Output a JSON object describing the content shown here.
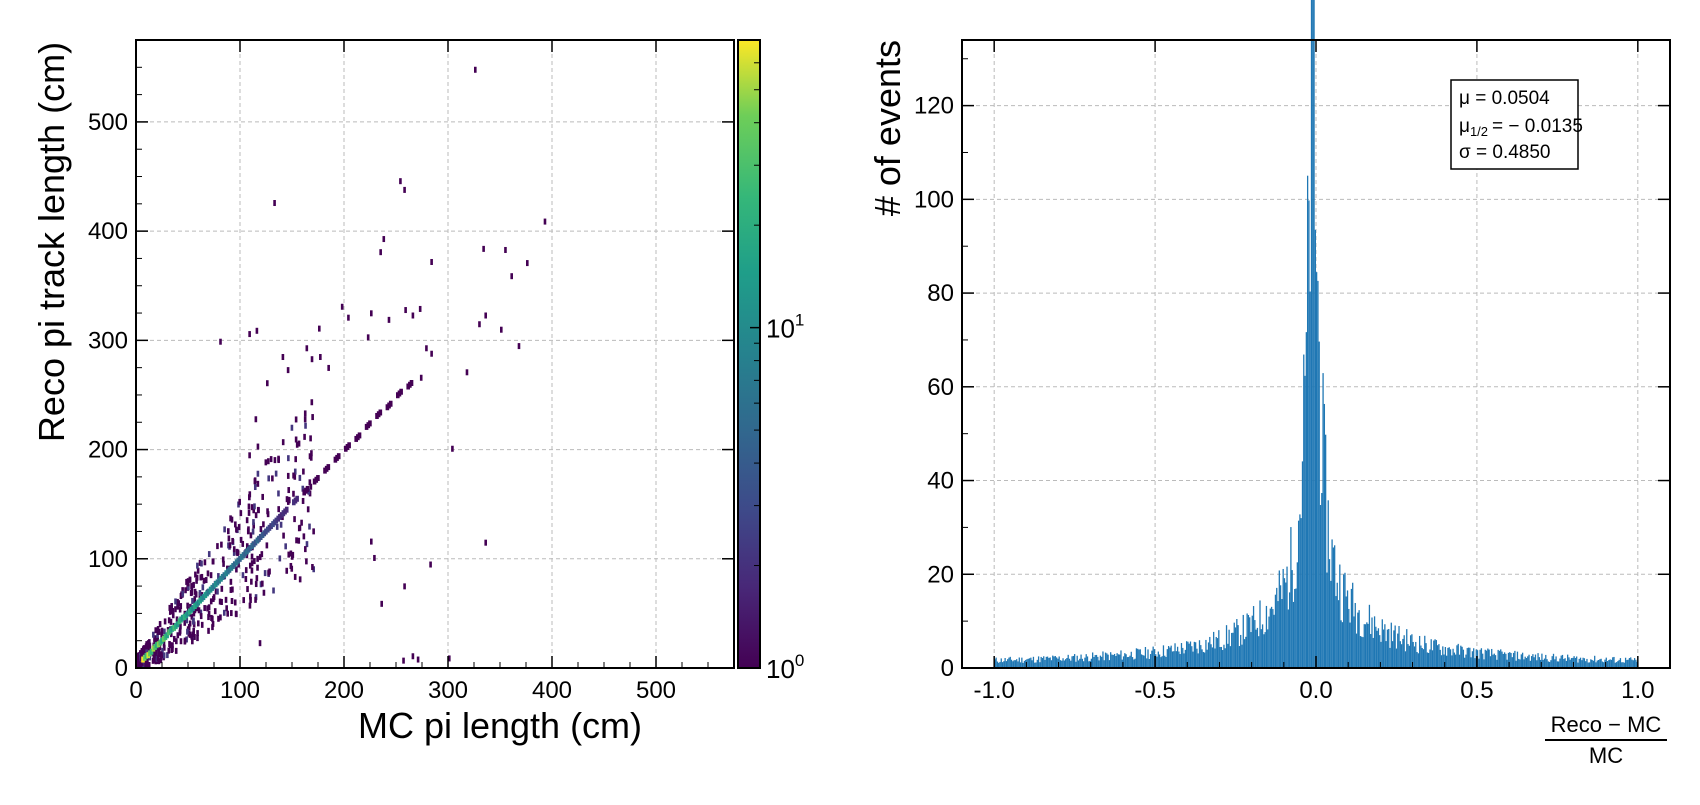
{
  "chart_data": [
    {
      "type": "heatmap",
      "xlabel": "MC pi length (cm)",
      "ylabel": "Reco pi track length (cm)",
      "xlim": [
        0,
        575
      ],
      "ylim": [
        0,
        575
      ],
      "x_ticks": [
        0,
        100,
        200,
        300,
        400,
        500
      ],
      "y_ticks": [
        0,
        100,
        200,
        300,
        400,
        500
      ],
      "grid": true,
      "colorscale": "viridis",
      "color_scale_type": "log",
      "colorbar_range": [
        1,
        70
      ],
      "colorbar_ticks": [
        {
          "value": 1,
          "base": "10",
          "exp": "0"
        },
        {
          "value": 10,
          "base": "10",
          "exp": "1"
        }
      ],
      "points": [
        [
          325,
          545
        ],
        [
          253,
          443
        ],
        [
          257,
          435
        ],
        [
          392,
          406
        ],
        [
          132,
          423
        ],
        [
          237,
          390
        ],
        [
          234,
          378
        ],
        [
          333,
          381
        ],
        [
          354,
          380
        ],
        [
          375,
          368
        ],
        [
          283,
          369
        ],
        [
          360,
          356
        ],
        [
          80,
          296
        ],
        [
          108,
          303
        ],
        [
          115,
          306
        ],
        [
          175,
          308
        ],
        [
          197,
          328
        ],
        [
          203,
          318
        ],
        [
          225,
          322
        ],
        [
          242,
          316
        ],
        [
          258,
          325
        ],
        [
          265,
          320
        ],
        [
          272,
          326
        ],
        [
          222,
          300
        ],
        [
          329,
          312
        ],
        [
          335,
          320
        ],
        [
          350,
          307
        ],
        [
          367,
          292
        ],
        [
          278,
          290
        ],
        [
          283,
          285
        ],
        [
          163,
          290
        ],
        [
          168,
          280
        ],
        [
          176,
          282
        ],
        [
          184,
          272
        ],
        [
          140,
          282
        ],
        [
          145,
          270
        ],
        [
          125,
          258
        ],
        [
          317,
          268
        ],
        [
          273,
          263
        ],
        [
          114,
          225
        ],
        [
          116,
          200
        ],
        [
          108,
          192
        ],
        [
          303,
          198
        ],
        [
          225,
          113
        ],
        [
          335,
          112
        ],
        [
          282,
          92
        ],
        [
          228,
          98
        ],
        [
          257,
          72
        ],
        [
          235,
          56
        ],
        [
          118,
          20
        ],
        [
          300,
          6
        ],
        [
          256,
          4
        ],
        [
          265,
          8
        ],
        [
          270,
          5
        ]
      ],
      "diag_band": [
        [
          5,
          5,
          70
        ],
        [
          10,
          9,
          60
        ],
        [
          15,
          15,
          50
        ],
        [
          20,
          19,
          45
        ],
        [
          25,
          24,
          40
        ],
        [
          30,
          30,
          30
        ],
        [
          35,
          34,
          28
        ],
        [
          40,
          40,
          25
        ],
        [
          45,
          44,
          22
        ],
        [
          50,
          49,
          20
        ],
        [
          55,
          54,
          18
        ],
        [
          60,
          59,
          16
        ],
        [
          65,
          64,
          14
        ],
        [
          70,
          69,
          12
        ],
        [
          75,
          74,
          11
        ],
        [
          80,
          79,
          10
        ],
        [
          85,
          84,
          9
        ],
        [
          90,
          89,
          8
        ],
        [
          95,
          94,
          7
        ],
        [
          100,
          99,
          7
        ],
        [
          105,
          104,
          6
        ],
        [
          110,
          109,
          5
        ],
        [
          115,
          114,
          5
        ],
        [
          120,
          119,
          4
        ],
        [
          125,
          124,
          3
        ],
        [
          130,
          129,
          3
        ],
        [
          135,
          134,
          2
        ],
        [
          140,
          139,
          2
        ],
        [
          150,
          149,
          2
        ],
        [
          160,
          158,
          1
        ],
        [
          170,
          168,
          1
        ],
        [
          180,
          178,
          1
        ],
        [
          190,
          188,
          1
        ],
        [
          200,
          198,
          1
        ],
        [
          210,
          207,
          1
        ],
        [
          220,
          218,
          1
        ],
        [
          230,
          228,
          1
        ],
        [
          240,
          236,
          1
        ],
        [
          250,
          247,
          1
        ],
        [
          260,
          255,
          1
        ]
      ]
    },
    {
      "type": "bar",
      "xlabel_numerator": "Reco − MC",
      "xlabel_denominator": "MC",
      "ylabel": "# of events",
      "xlim": [
        -1.1,
        1.1
      ],
      "ylim": [
        0,
        134
      ],
      "x_ticks": [
        -1.0,
        -0.5,
        0.0,
        0.5,
        1.0
      ],
      "x_tick_labels": [
        "-1.0",
        "-0.5",
        "0.0",
        "0.5",
        "1.0"
      ],
      "y_ticks": [
        0,
        20,
        40,
        60,
        80,
        100,
        120
      ],
      "grid": true,
      "color": "#1f77b4",
      "bin_range": [
        -1.0,
        1.0
      ],
      "n_bins": 500,
      "peak_value": 127,
      "peak_location": -0.01,
      "stats": {
        "mean": "μ = 0.0504",
        "median": "μ",
        "median_sub": "1/2",
        "median_value": "= − 0.0135",
        "sigma": "σ = 0.4850"
      }
    }
  ]
}
